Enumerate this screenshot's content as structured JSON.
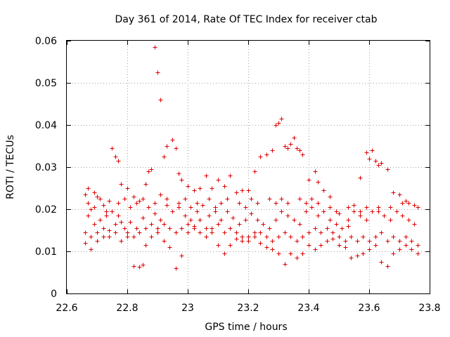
{
  "chart_data": {
    "type": "scatter",
    "title": "Day 361 of 2014, Rate Of TEC Index for receiver ctab",
    "xlabel": "GPS time / hours",
    "ylabel": "ROTI / TECUs",
    "xlim": [
      22.6,
      23.8
    ],
    "ylim": [
      0,
      0.06
    ],
    "x_ticks": [
      "22.6",
      "22.8",
      "23",
      "23.2",
      "23.4",
      "23.6",
      "23.8"
    ],
    "y_ticks": [
      "0",
      "0.01",
      "0.02",
      "0.03",
      "0.04",
      "0.05",
      "0.06"
    ],
    "grid": true,
    "marker": "+",
    "color": "#dd0000",
    "series": [
      {
        "name": "ROTI",
        "points": [
          [
            22.66,
            0.0235
          ],
          [
            22.67,
            0.025
          ],
          [
            22.68,
            0.02
          ],
          [
            22.69,
            0.024
          ],
          [
            22.7,
            0.023
          ],
          [
            22.72,
            0.021
          ],
          [
            22.74,
            0.022
          ],
          [
            22.75,
            0.0345
          ],
          [
            22.76,
            0.0325
          ],
          [
            22.77,
            0.0315
          ],
          [
            22.78,
            0.026
          ],
          [
            22.8,
            0.025
          ],
          [
            22.82,
            0.023
          ],
          [
            22.84,
            0.022
          ],
          [
            22.86,
            0.026
          ],
          [
            22.87,
            0.029
          ],
          [
            22.88,
            0.0295
          ],
          [
            22.89,
            0.0585
          ],
          [
            22.9,
            0.0525
          ],
          [
            22.91,
            0.046
          ],
          [
            22.92,
            0.0325
          ],
          [
            22.93,
            0.035
          ],
          [
            22.95,
            0.0365
          ],
          [
            22.96,
            0.0345
          ],
          [
            22.97,
            0.0285
          ],
          [
            22.98,
            0.027
          ],
          [
            23.0,
            0.0255
          ],
          [
            23.02,
            0.0245
          ],
          [
            23.04,
            0.025
          ],
          [
            23.06,
            0.028
          ],
          [
            23.08,
            0.025
          ],
          [
            23.1,
            0.027
          ],
          [
            23.12,
            0.0255
          ],
          [
            23.14,
            0.028
          ],
          [
            23.16,
            0.024
          ],
          [
            23.18,
            0.0245
          ],
          [
            23.2,
            0.0245
          ],
          [
            23.22,
            0.029
          ],
          [
            23.24,
            0.0325
          ],
          [
            23.26,
            0.033
          ],
          [
            23.28,
            0.034
          ],
          [
            23.29,
            0.04
          ],
          [
            23.3,
            0.0405
          ],
          [
            23.31,
            0.0415
          ],
          [
            23.32,
            0.035
          ],
          [
            23.33,
            0.0345
          ],
          [
            23.34,
            0.0355
          ],
          [
            23.35,
            0.037
          ],
          [
            23.36,
            0.0345
          ],
          [
            23.37,
            0.034
          ],
          [
            23.38,
            0.033
          ],
          [
            23.4,
            0.027
          ],
          [
            23.42,
            0.029
          ],
          [
            23.43,
            0.0265
          ],
          [
            23.45,
            0.0245
          ],
          [
            23.47,
            0.023
          ],
          [
            23.5,
            0.019
          ],
          [
            23.53,
            0.016
          ],
          [
            23.55,
            0.021
          ],
          [
            23.57,
            0.0275
          ],
          [
            23.59,
            0.0335
          ],
          [
            23.6,
            0.032
          ],
          [
            23.61,
            0.034
          ],
          [
            23.62,
            0.0315
          ],
          [
            23.63,
            0.0305
          ],
          [
            23.64,
            0.031
          ],
          [
            23.66,
            0.0295
          ],
          [
            23.68,
            0.024
          ],
          [
            23.7,
            0.0235
          ],
          [
            23.72,
            0.022
          ],
          [
            23.73,
            0.0215
          ],
          [
            23.75,
            0.021
          ],
          [
            23.76,
            0.0205
          ],
          [
            22.66,
            0.012
          ],
          [
            22.68,
            0.0105
          ],
          [
            22.7,
            0.0125
          ],
          [
            22.72,
            0.0135
          ],
          [
            22.74,
            0.015
          ],
          [
            22.76,
            0.0165
          ],
          [
            22.78,
            0.017
          ],
          [
            22.8,
            0.0135
          ],
          [
            22.82,
            0.0065
          ],
          [
            22.84,
            0.0063
          ],
          [
            22.85,
            0.0068
          ],
          [
            22.86,
            0.0115
          ],
          [
            22.88,
            0.0135
          ],
          [
            22.9,
            0.0145
          ],
          [
            22.92,
            0.0125
          ],
          [
            22.94,
            0.011
          ],
          [
            22.96,
            0.006
          ],
          [
            22.98,
            0.009
          ],
          [
            23.0,
            0.0145
          ],
          [
            23.02,
            0.016
          ],
          [
            23.04,
            0.0175
          ],
          [
            23.06,
            0.0155
          ],
          [
            23.08,
            0.0145
          ],
          [
            23.1,
            0.0115
          ],
          [
            23.12,
            0.0095
          ],
          [
            23.14,
            0.0115
          ],
          [
            23.16,
            0.013
          ],
          [
            23.18,
            0.0125
          ],
          [
            23.2,
            0.0135
          ],
          [
            23.22,
            0.0145
          ],
          [
            23.24,
            0.012
          ],
          [
            23.26,
            0.011
          ],
          [
            23.28,
            0.0105
          ],
          [
            23.3,
            0.0095
          ],
          [
            23.32,
            0.007
          ],
          [
            23.34,
            0.0095
          ],
          [
            23.36,
            0.0085
          ],
          [
            23.38,
            0.0095
          ],
          [
            23.4,
            0.0115
          ],
          [
            23.42,
            0.0105
          ],
          [
            23.44,
            0.0115
          ],
          [
            23.46,
            0.0125
          ],
          [
            23.48,
            0.013
          ],
          [
            23.5,
            0.0115
          ],
          [
            23.52,
            0.011
          ],
          [
            23.54,
            0.0085
          ],
          [
            23.56,
            0.009
          ],
          [
            23.58,
            0.0095
          ],
          [
            23.6,
            0.0105
          ],
          [
            23.62,
            0.0115
          ],
          [
            23.64,
            0.0075
          ],
          [
            23.66,
            0.0065
          ],
          [
            23.68,
            0.0095
          ],
          [
            23.7,
            0.0105
          ],
          [
            23.72,
            0.0115
          ],
          [
            23.74,
            0.0105
          ],
          [
            23.76,
            0.0095
          ],
          [
            22.67,
            0.0185
          ],
          [
            22.69,
            0.0165
          ],
          [
            22.71,
            0.0175
          ],
          [
            22.73,
            0.0185
          ],
          [
            22.75,
            0.0195
          ],
          [
            22.77,
            0.0185
          ],
          [
            22.79,
            0.0155
          ],
          [
            22.81,
            0.017
          ],
          [
            22.83,
            0.0155
          ],
          [
            22.85,
            0.018
          ],
          [
            22.87,
            0.0205
          ],
          [
            22.89,
            0.019
          ],
          [
            22.91,
            0.0175
          ],
          [
            22.93,
            0.021
          ],
          [
            22.95,
            0.0195
          ],
          [
            22.97,
            0.0205
          ],
          [
            22.99,
            0.0185
          ],
          [
            23.01,
            0.0175
          ],
          [
            23.03,
            0.0195
          ],
          [
            23.05,
            0.021
          ],
          [
            23.07,
            0.0185
          ],
          [
            23.09,
            0.0195
          ],
          [
            23.11,
            0.0175
          ],
          [
            23.13,
            0.0195
          ],
          [
            23.15,
            0.018
          ],
          [
            23.17,
            0.0165
          ],
          [
            23.19,
            0.0175
          ],
          [
            23.21,
            0.019
          ],
          [
            23.23,
            0.0175
          ],
          [
            23.25,
            0.0165
          ],
          [
            23.27,
            0.0155
          ],
          [
            23.29,
            0.0175
          ],
          [
            23.31,
            0.0195
          ],
          [
            23.33,
            0.0185
          ],
          [
            23.35,
            0.0175
          ],
          [
            23.37,
            0.0165
          ],
          [
            23.39,
            0.0195
          ],
          [
            23.41,
            0.0205
          ],
          [
            23.43,
            0.0185
          ],
          [
            23.45,
            0.0195
          ],
          [
            23.47,
            0.0175
          ],
          [
            23.49,
            0.0165
          ],
          [
            23.51,
            0.0155
          ],
          [
            23.53,
            0.0175
          ],
          [
            23.55,
            0.0195
          ],
          [
            23.57,
            0.0185
          ],
          [
            23.59,
            0.0175
          ],
          [
            23.61,
            0.0195
          ],
          [
            23.63,
            0.0205
          ],
          [
            23.65,
            0.0185
          ],
          [
            23.67,
            0.0175
          ],
          [
            23.69,
            0.0195
          ],
          [
            23.71,
            0.0185
          ],
          [
            23.73,
            0.0175
          ],
          [
            23.75,
            0.0165
          ],
          [
            22.66,
            0.0145
          ],
          [
            22.68,
            0.0135
          ],
          [
            22.7,
            0.0145
          ],
          [
            22.72,
            0.0155
          ],
          [
            22.74,
            0.0135
          ],
          [
            22.76,
            0.0145
          ],
          [
            22.78,
            0.0125
          ],
          [
            22.8,
            0.0145
          ],
          [
            22.82,
            0.0135
          ],
          [
            22.84,
            0.0145
          ],
          [
            22.86,
            0.0155
          ],
          [
            22.88,
            0.0165
          ],
          [
            22.9,
            0.0155
          ],
          [
            22.92,
            0.0165
          ],
          [
            22.94,
            0.0155
          ],
          [
            22.96,
            0.0145
          ],
          [
            22.98,
            0.0155
          ],
          [
            23.0,
            0.0165
          ],
          [
            23.02,
            0.0155
          ],
          [
            23.04,
            0.0145
          ],
          [
            23.06,
            0.0135
          ],
          [
            23.08,
            0.0155
          ],
          [
            23.1,
            0.0165
          ],
          [
            23.12,
            0.0145
          ],
          [
            23.14,
            0.0155
          ],
          [
            23.16,
            0.0145
          ],
          [
            23.18,
            0.0135
          ],
          [
            23.2,
            0.0125
          ],
          [
            23.22,
            0.0135
          ],
          [
            23.24,
            0.0145
          ],
          [
            23.26,
            0.0135
          ],
          [
            23.28,
            0.0125
          ],
          [
            23.3,
            0.0135
          ],
          [
            23.32,
            0.0145
          ],
          [
            23.34,
            0.0135
          ],
          [
            23.36,
            0.0125
          ],
          [
            23.38,
            0.0135
          ],
          [
            23.4,
            0.0145
          ],
          [
            23.42,
            0.0155
          ],
          [
            23.44,
            0.0145
          ],
          [
            23.46,
            0.0155
          ],
          [
            23.48,
            0.0145
          ],
          [
            23.5,
            0.0135
          ],
          [
            23.52,
            0.0125
          ],
          [
            23.54,
            0.0135
          ],
          [
            23.56,
            0.0125
          ],
          [
            23.58,
            0.0135
          ],
          [
            23.6,
            0.0125
          ],
          [
            23.62,
            0.0135
          ],
          [
            23.64,
            0.0145
          ],
          [
            23.66,
            0.0125
          ],
          [
            23.68,
            0.0135
          ],
          [
            23.7,
            0.0125
          ],
          [
            23.72,
            0.0135
          ],
          [
            23.74,
            0.0125
          ],
          [
            23.76,
            0.0115
          ],
          [
            22.67,
            0.0215
          ],
          [
            22.69,
            0.0205
          ],
          [
            22.71,
            0.0225
          ],
          [
            22.73,
            0.0195
          ],
          [
            22.77,
            0.0215
          ],
          [
            22.79,
            0.0225
          ],
          [
            22.81,
            0.0205
          ],
          [
            22.83,
            0.0215
          ],
          [
            22.85,
            0.0225
          ],
          [
            22.89,
            0.0215
          ],
          [
            22.91,
            0.0235
          ],
          [
            22.93,
            0.0225
          ],
          [
            22.97,
            0.0215
          ],
          [
            22.99,
            0.0225
          ],
          [
            23.01,
            0.0205
          ],
          [
            23.03,
            0.0215
          ],
          [
            23.07,
            0.0225
          ],
          [
            23.09,
            0.0205
          ],
          [
            23.11,
            0.0215
          ],
          [
            23.13,
            0.0225
          ],
          [
            23.17,
            0.0215
          ],
          [
            23.19,
            0.0205
          ],
          [
            23.21,
            0.0225
          ],
          [
            23.23,
            0.0215
          ],
          [
            23.27,
            0.0225
          ],
          [
            23.29,
            0.0215
          ],
          [
            23.31,
            0.0225
          ],
          [
            23.33,
            0.0215
          ],
          [
            23.37,
            0.0225
          ],
          [
            23.39,
            0.0215
          ],
          [
            23.41,
            0.0225
          ],
          [
            23.43,
            0.0215
          ],
          [
            23.47,
            0.0205
          ],
          [
            23.49,
            0.0195
          ],
          [
            23.53,
            0.0205
          ],
          [
            23.57,
            0.0195
          ],
          [
            23.59,
            0.0205
          ],
          [
            23.63,
            0.0195
          ],
          [
            23.67,
            0.0205
          ],
          [
            23.71,
            0.0215
          ]
        ]
      }
    ]
  }
}
